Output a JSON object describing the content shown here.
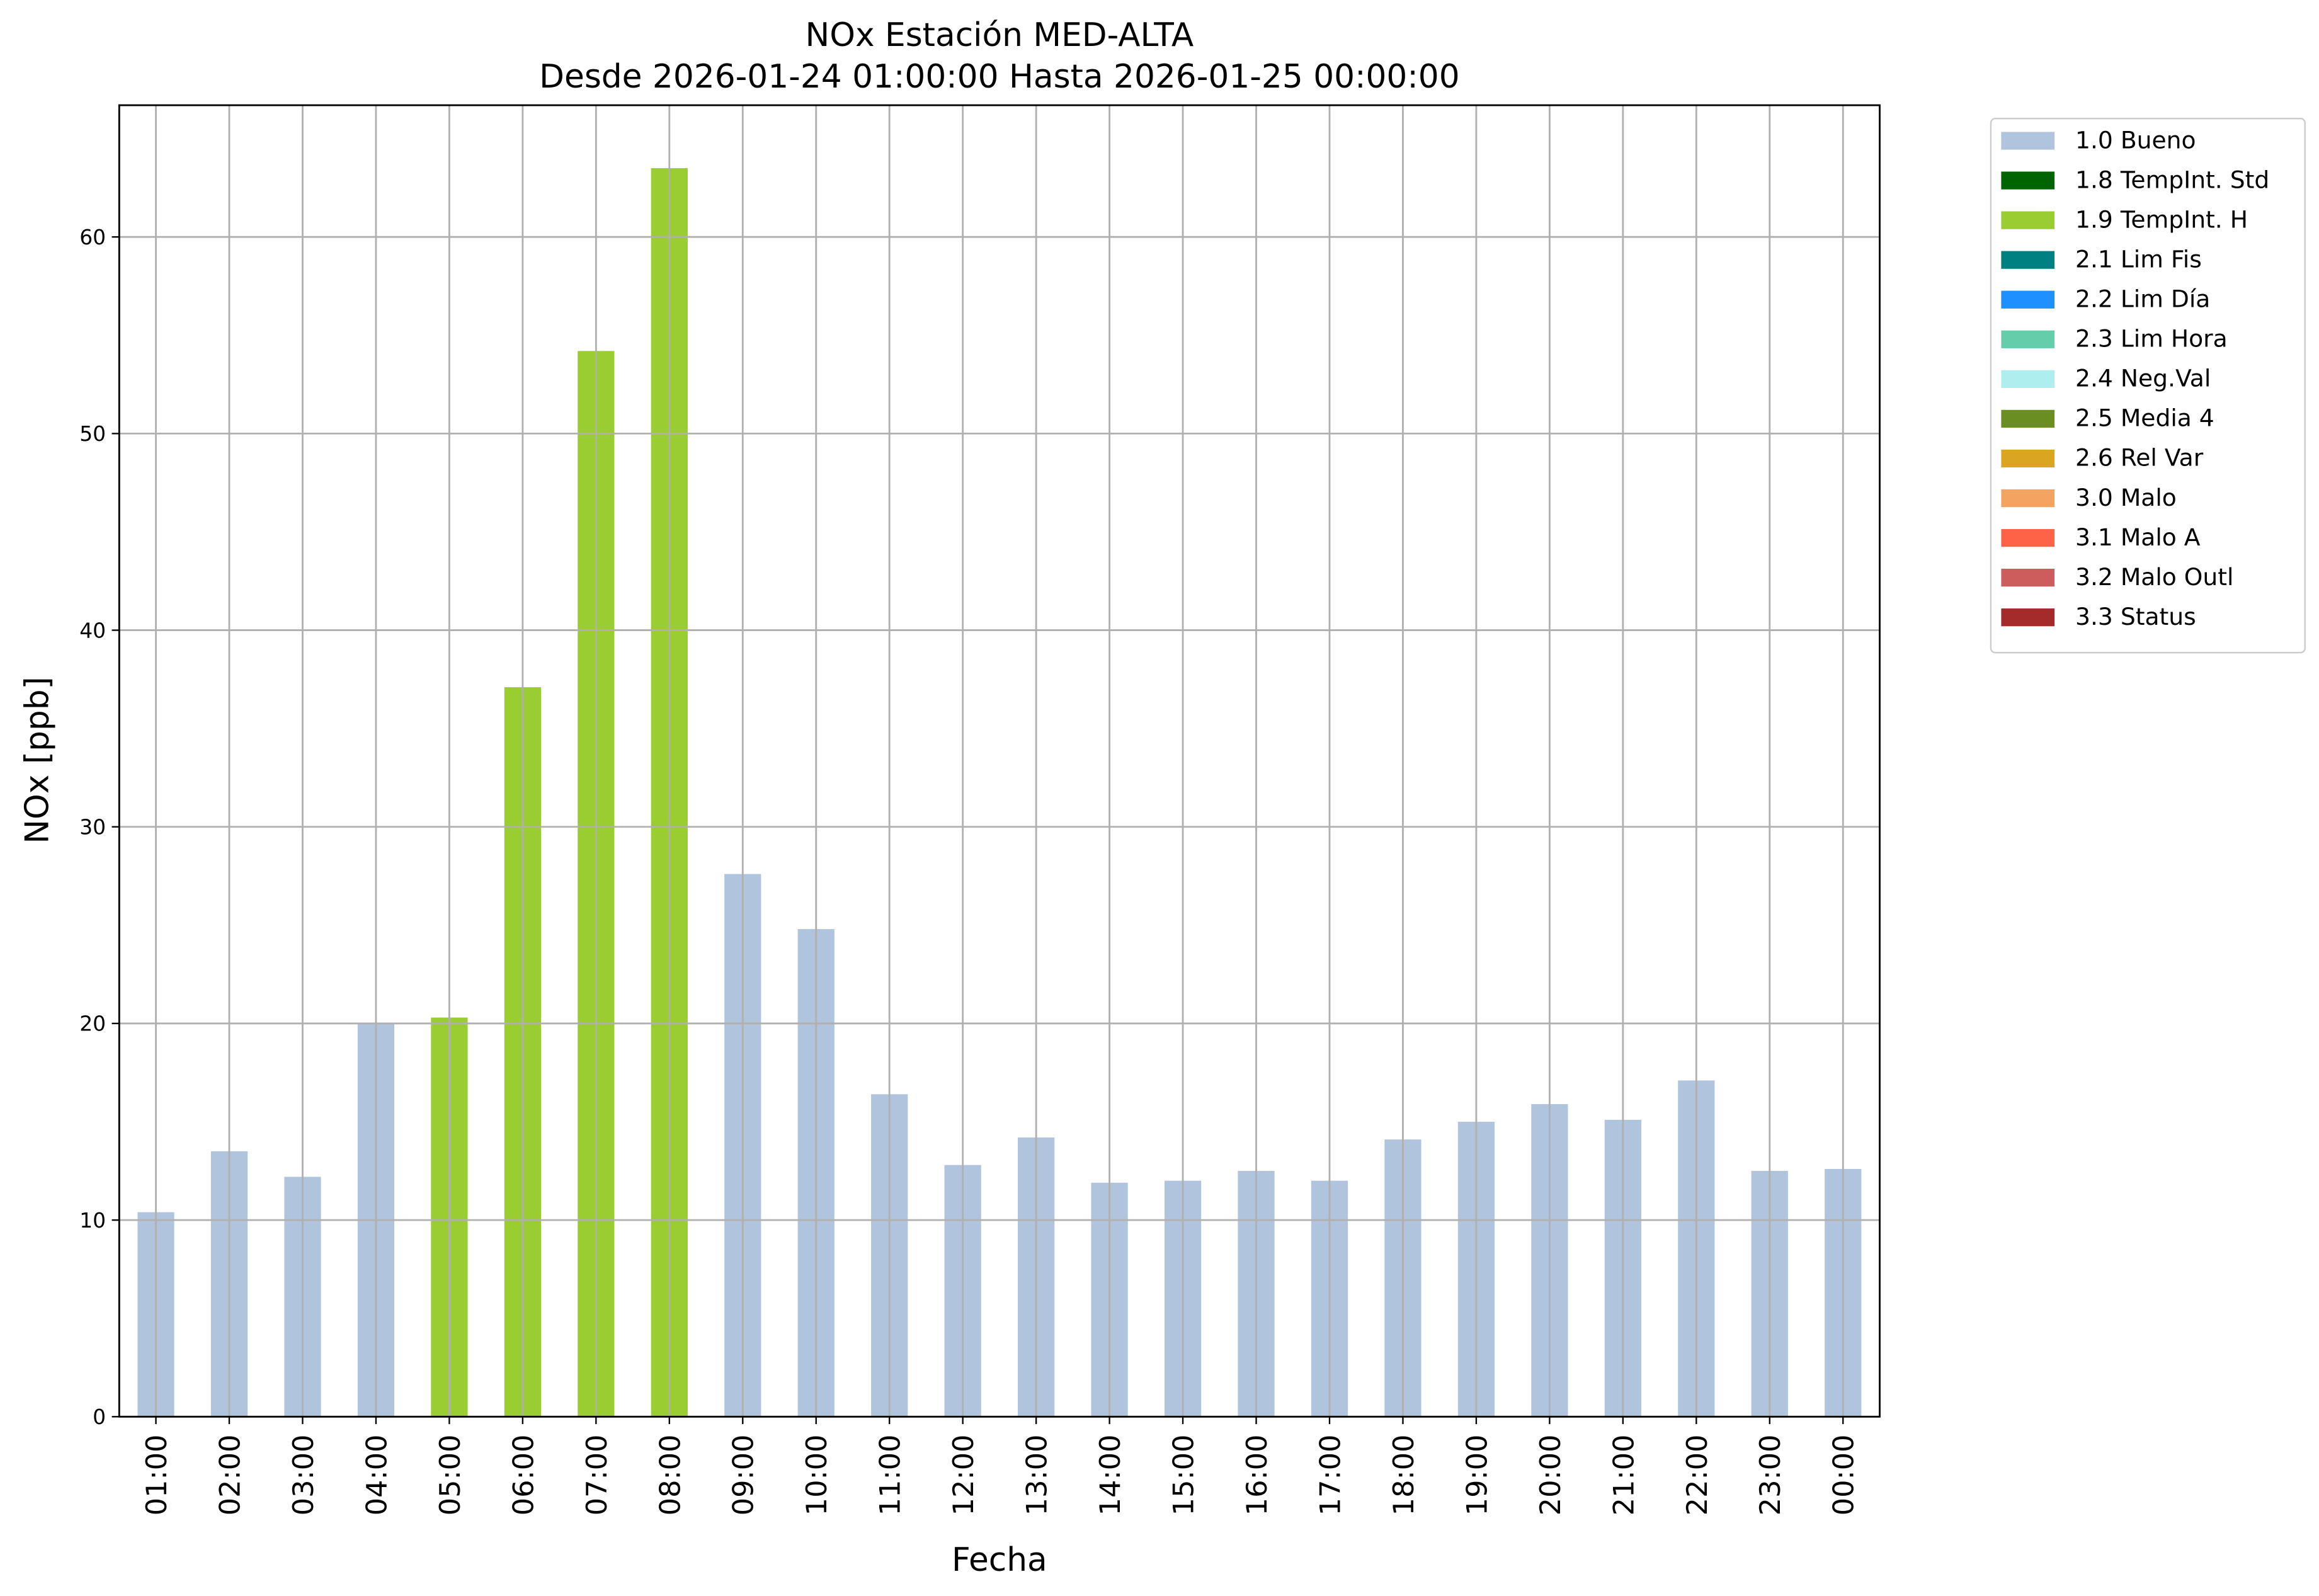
{
  "chart_data": {
    "type": "bar",
    "stacked": true,
    "title": "NOx Estación MED-ALTA",
    "subtitle": "Desde 2026-01-24 01:00:00 Hasta 2026-01-25 00:00:00",
    "x_label": "Fecha",
    "y_label": "NOx [ppb]",
    "categories": [
      "01:00",
      "02:00",
      "03:00",
      "04:00",
      "05:00",
      "06:00",
      "07:00",
      "08:00",
      "09:00",
      "10:00",
      "11:00",
      "12:00",
      "13:00",
      "14:00",
      "15:00",
      "16:00",
      "17:00",
      "18:00",
      "19:00",
      "20:00",
      "21:00",
      "22:00",
      "23:00",
      "00:00"
    ],
    "series": [
      {
        "name": "1.0 Bueno",
        "color": "#b0c4de",
        "values": [
          10.4,
          13.5,
          12.2,
          20.0,
          null,
          null,
          null,
          null,
          27.6,
          24.8,
          16.4,
          12.8,
          14.2,
          11.9,
          12.0,
          12.5,
          12.0,
          14.1,
          15.0,
          15.9,
          15.1,
          17.1,
          12.5,
          12.6
        ]
      },
      {
        "name": "1.8 TempInt. Std",
        "color": "#006400",
        "values": [
          null,
          null,
          null,
          null,
          null,
          null,
          null,
          null,
          null,
          null,
          null,
          null,
          null,
          null,
          null,
          null,
          null,
          null,
          null,
          null,
          null,
          null,
          null,
          null
        ]
      },
      {
        "name": "1.9 TempInt. H",
        "color": "#9acd32",
        "values": [
          null,
          null,
          null,
          null,
          20.3,
          37.1,
          54.2,
          63.5,
          null,
          null,
          null,
          null,
          null,
          null,
          null,
          null,
          null,
          null,
          null,
          null,
          null,
          null,
          null,
          null
        ]
      },
      {
        "name": "2.1 Lim Fis",
        "color": "#008080",
        "values": [
          null,
          null,
          null,
          null,
          null,
          null,
          null,
          null,
          null,
          null,
          null,
          null,
          null,
          null,
          null,
          null,
          null,
          null,
          null,
          null,
          null,
          null,
          null,
          null
        ]
      },
      {
        "name": "2.2 Lim Día",
        "color": "#1e90ff",
        "values": [
          null,
          null,
          null,
          null,
          null,
          null,
          null,
          null,
          null,
          null,
          null,
          null,
          null,
          null,
          null,
          null,
          null,
          null,
          null,
          null,
          null,
          null,
          null,
          null
        ]
      },
      {
        "name": "2.3 Lim Hora",
        "color": "#66cdaa",
        "values": [
          null,
          null,
          null,
          null,
          null,
          null,
          null,
          null,
          null,
          null,
          null,
          null,
          null,
          null,
          null,
          null,
          null,
          null,
          null,
          null,
          null,
          null,
          null,
          null
        ]
      },
      {
        "name": "2.4 Neg.Val",
        "color": "#afeeee",
        "values": [
          null,
          null,
          null,
          null,
          null,
          null,
          null,
          null,
          null,
          null,
          null,
          null,
          null,
          null,
          null,
          null,
          null,
          null,
          null,
          null,
          null,
          null,
          null,
          null
        ]
      },
      {
        "name": "2.5 Media 4",
        "color": "#6b8e23",
        "values": [
          null,
          null,
          null,
          null,
          null,
          null,
          null,
          null,
          null,
          null,
          null,
          null,
          null,
          null,
          null,
          null,
          null,
          null,
          null,
          null,
          null,
          null,
          null,
          null
        ]
      },
      {
        "name": "2.6 Rel Var",
        "color": "#daa520",
        "values": [
          null,
          null,
          null,
          null,
          null,
          null,
          null,
          null,
          null,
          null,
          null,
          null,
          null,
          null,
          null,
          null,
          null,
          null,
          null,
          null,
          null,
          null,
          null,
          null
        ]
      },
      {
        "name": "3.0 Malo",
        "color": "#f4a460",
        "values": [
          null,
          null,
          null,
          null,
          null,
          null,
          null,
          null,
          null,
          null,
          null,
          null,
          null,
          null,
          null,
          null,
          null,
          null,
          null,
          null,
          null,
          null,
          null,
          null
        ]
      },
      {
        "name": "3.1 Malo A",
        "color": "#ff6347",
        "values": [
          null,
          null,
          null,
          null,
          null,
          null,
          null,
          null,
          null,
          null,
          null,
          null,
          null,
          null,
          null,
          null,
          null,
          null,
          null,
          null,
          null,
          null,
          null,
          null
        ]
      },
      {
        "name": "3.2 Malo Outl",
        "color": "#cd5c5c",
        "values": [
          null,
          null,
          null,
          null,
          null,
          null,
          null,
          null,
          null,
          null,
          null,
          null,
          null,
          null,
          null,
          null,
          null,
          null,
          null,
          null,
          null,
          null,
          null,
          null
        ]
      },
      {
        "name": "3.3 Status",
        "color": "#a52a2a",
        "values": [
          null,
          null,
          null,
          null,
          null,
          null,
          null,
          null,
          null,
          null,
          null,
          null,
          null,
          null,
          null,
          null,
          null,
          null,
          null,
          null,
          null,
          null,
          null,
          null
        ]
      }
    ],
    "ylim": [
      0,
      66.7
    ],
    "yticks": [
      0,
      10,
      20,
      30,
      40,
      50,
      60
    ],
    "grid": true,
    "legend": "outside-upper-right"
  }
}
